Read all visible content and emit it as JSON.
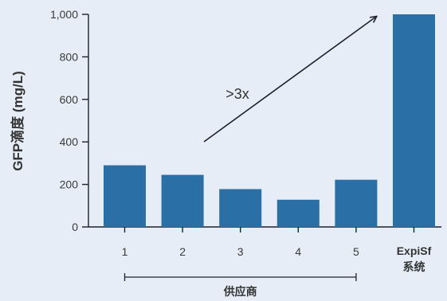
{
  "chart_data": {
    "type": "bar",
    "categories": [
      "1",
      "2",
      "3",
      "4",
      "5",
      "ExpiSf"
    ],
    "category_sublabels": [
      "",
      "",
      "",
      "",
      "",
      "系统"
    ],
    "values": [
      290,
      245,
      178,
      128,
      222,
      1000
    ],
    "ylabel": "GFP滴度 (mg/L)",
    "ylim": [
      0,
      1000
    ],
    "yticks": [
      "0",
      "200",
      "400",
      "600",
      "800",
      "1,000"
    ],
    "ytick_values": [
      0,
      200,
      400,
      600,
      800,
      1000
    ],
    "bar_color": "#2a6fa5",
    "annotation": ">3x",
    "group_label": "供应商",
    "grid": false,
    "legend": "none"
  }
}
